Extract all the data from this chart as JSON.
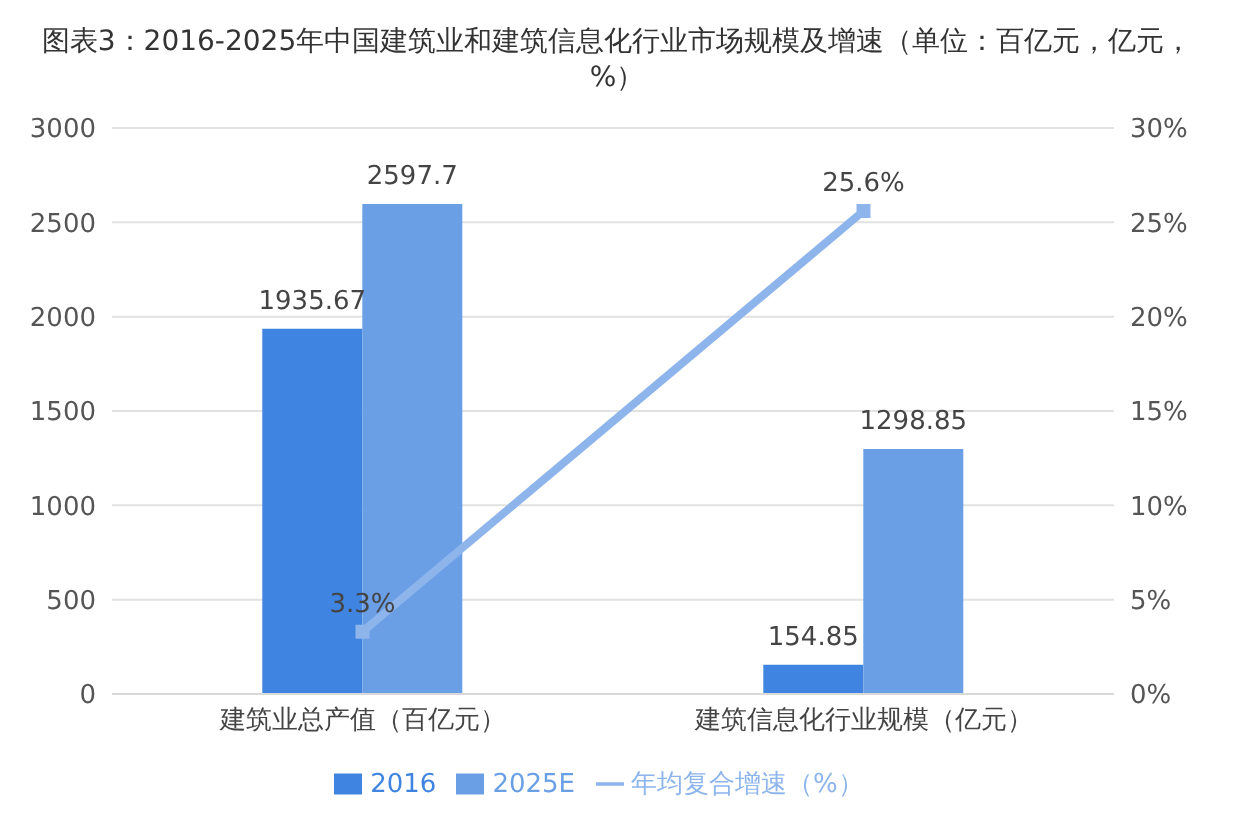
{
  "chart_data": {
    "type": "bar",
    "title": "图表3：2016-2025年中国建筑业和建筑信息化行业市场规模及增速（单位：百亿元，亿元，%）",
    "categories": [
      "建筑业总产值（百亿元）",
      "建筑信息化行业规模（亿元）"
    ],
    "series": [
      {
        "name": "2016",
        "color": "#3f84e0",
        "values": [
          1935.67,
          154.85
        ],
        "value_labels": [
          "1935.67",
          "154.85"
        ]
      },
      {
        "name": "2025E",
        "color": "#6a9fe6",
        "values": [
          2597.7,
          1298.85
        ],
        "value_labels": [
          "2597.7",
          "1298.85"
        ]
      },
      {
        "name": "年均复合增速（%）",
        "type": "line",
        "axis": "y2",
        "color": "#8db5ec",
        "marker": "square",
        "values": [
          3.3,
          25.6
        ],
        "value_labels": [
          "3.3%",
          "25.6%"
        ]
      }
    ],
    "ylim": [
      0,
      3000
    ],
    "yticks": [
      0,
      500,
      1000,
      1500,
      2000,
      2500,
      3000
    ],
    "y2lim": [
      0,
      30
    ],
    "y2ticks": [
      {
        "value": 0,
        "label": "0%"
      },
      {
        "value": 5,
        "label": "5%"
      },
      {
        "value": 10,
        "label": "10%"
      },
      {
        "value": 15,
        "label": "15%"
      },
      {
        "value": 20,
        "label": "20%"
      },
      {
        "value": 25,
        "label": "25%"
      },
      {
        "value": 30,
        "label": "30%"
      }
    ],
    "grid": "y",
    "legend": "bottom"
  }
}
